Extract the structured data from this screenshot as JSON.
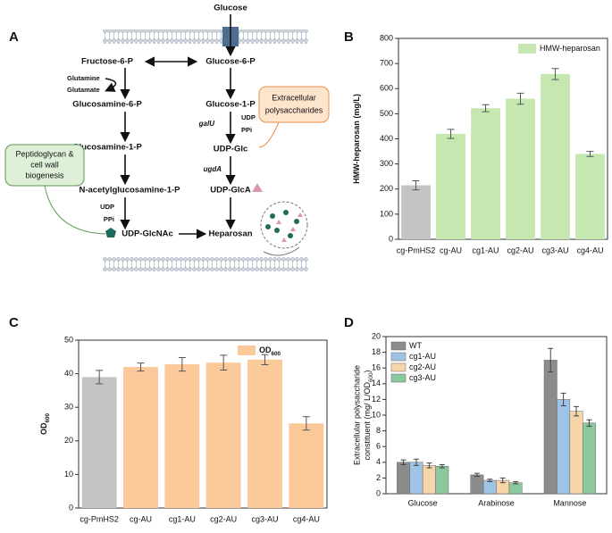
{
  "panels": [
    "A",
    "B",
    "C",
    "D"
  ],
  "diagram": {
    "glucose": "Glucose",
    "fructose6p": "Fructose-6-P",
    "glucose6p": "Glucose-6-P",
    "glutamine": "Glutamine",
    "glutamate": "Glutamate",
    "glucosamine6p": "Glucosamine-6-P",
    "glucose1p": "Glucose-1-P",
    "galu": "galU",
    "udp1": "UDP",
    "ppi1": "PPi",
    "eps": [
      "Extracellular",
      "polysaccharides"
    ],
    "glucosamine1p": "Glucosamine-1-P",
    "udpglc": "UDP-Glc",
    "ugda": "ugdA",
    "udpglca": "UDP-GlcA",
    "nacetyl": "N-acetylglucosamine-1-P",
    "peptido": [
      "Peptidoglycan &",
      "cell wall",
      "biogenesis"
    ],
    "udp2": "UDP",
    "ppi2": "PPi",
    "udpglcnac": "UDP-GlcNAc",
    "heparosan": "Heparosan"
  },
  "chart_data": [
    {
      "type": "bar",
      "ylabel": "HMW-heparosan (mg/L)",
      "categories": [
        "cg-PmHS2",
        "cg-AU",
        "cg1-AU",
        "cg2-AU",
        "cg3-AU",
        "cg4-AU"
      ],
      "series": [
        {
          "name": "HMW-heparosan",
          "color": "#c6e8b0",
          "values": [
            215,
            420,
            522,
            560,
            658,
            340
          ],
          "errors": [
            18,
            18,
            14,
            22,
            22,
            10
          ]
        }
      ],
      "bar_colors": [
        "#c4c4c4",
        "#c6e8b0",
        "#c6e8b0",
        "#c6e8b0",
        "#c6e8b0",
        "#c6e8b0"
      ],
      "ylim": [
        0,
        800
      ],
      "yticks": [
        0,
        100,
        200,
        300,
        400,
        500,
        600,
        700,
        800
      ],
      "legend": "upper right"
    },
    {
      "type": "bar",
      "ylabel": "OD",
      "ylabel_sub": "600",
      "categories": [
        "cg-PmHS2",
        "cg-AU",
        "cg1-AU",
        "cg2-AU",
        "cg3-AU",
        "cg4-AU"
      ],
      "series": [
        {
          "name": "OD",
          "name_sub": "600",
          "color": "#fbc99a",
          "values": [
            39,
            42,
            42.8,
            43.3,
            44.2,
            25.2
          ],
          "errors": [
            2,
            1.2,
            2,
            2.2,
            1.5,
            2
          ]
        }
      ],
      "bar_colors": [
        "#c4c4c4",
        "#fbc99a",
        "#fbc99a",
        "#fbc99a",
        "#fbc99a",
        "#fbc99a"
      ],
      "ylim": [
        0,
        50
      ],
      "yticks": [
        0,
        10,
        20,
        30,
        40,
        50
      ],
      "legend": "upper right"
    },
    {
      "type": "grouped_bar",
      "ylabel": "Extracellular polysaccharide",
      "ylabel2": "constituent (mg/ L/OD",
      "ylabel2_sub": "600",
      "ylabel2_end": ")",
      "categories": [
        "Glucose",
        "Arabinose",
        "Mannose"
      ],
      "series": [
        {
          "name": "WT",
          "color": "#8c8c8c",
          "values": [
            4.0,
            2.4,
            17.0
          ],
          "errors": [
            0.3,
            0.2,
            1.5
          ]
        },
        {
          "name": "cg1-AU",
          "color": "#9dc3e6",
          "values": [
            4.0,
            1.7,
            12.0
          ],
          "errors": [
            0.4,
            0.15,
            0.8
          ]
        },
        {
          "name": "cg2-AU",
          "color": "#f8d5a8",
          "values": [
            3.6,
            1.7,
            10.5
          ],
          "errors": [
            0.3,
            0.3,
            0.6
          ]
        },
        {
          "name": "cg3-AU",
          "color": "#8cc7a0",
          "values": [
            3.5,
            1.4,
            9.0
          ],
          "errors": [
            0.2,
            0.15,
            0.4
          ]
        }
      ],
      "ylim": [
        0,
        20
      ],
      "yticks": [
        0,
        2,
        4,
        6,
        8,
        10,
        12,
        14,
        16,
        18,
        20
      ],
      "legend": "upper left"
    }
  ]
}
